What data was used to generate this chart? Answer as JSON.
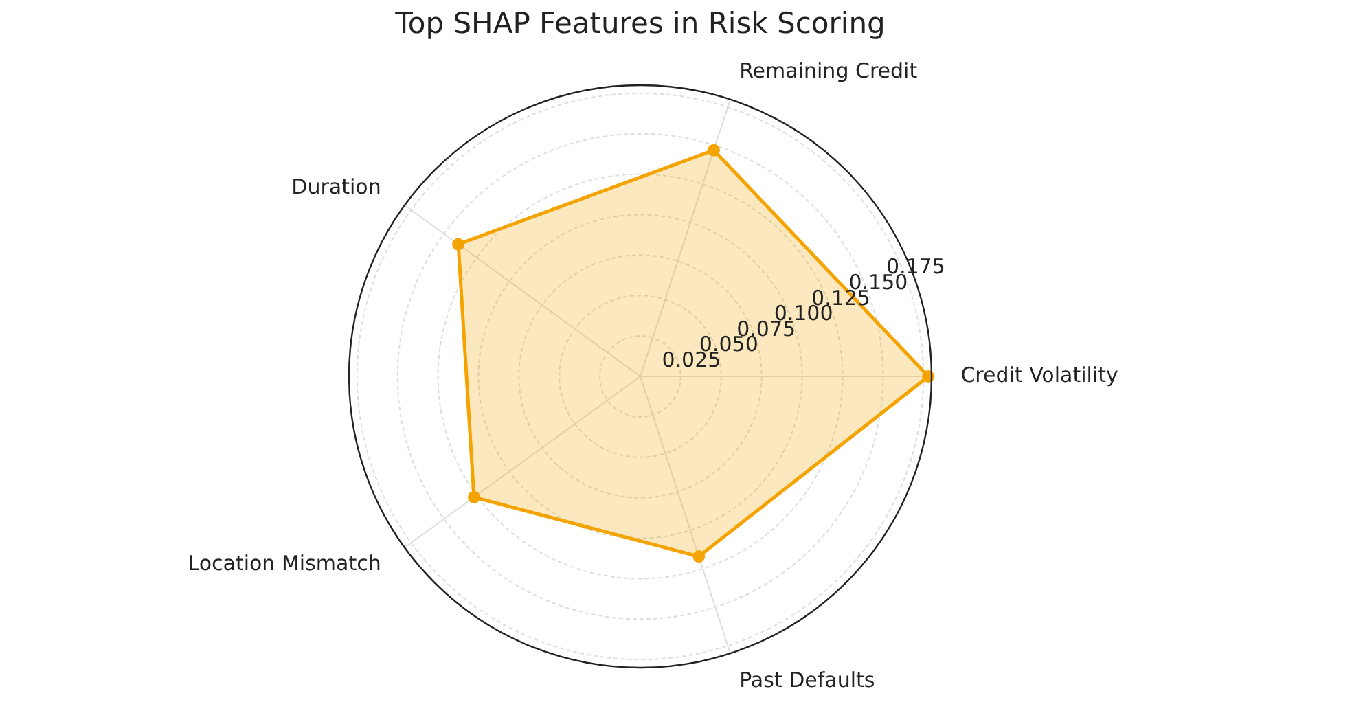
{
  "chart_data": {
    "type": "radar",
    "title": "Top SHAP Features in Risk Scoring",
    "categories": [
      "Remaining Credit",
      "Credit Volatility",
      "Past Defaults",
      "Location Mismatch",
      "Duration"
    ],
    "series": [
      {
        "color": "#f5a300",
        "values": [
          0.147,
          0.178,
          0.117,
          0.127,
          0.139
        ]
      }
    ],
    "ylim": [
      0,
      0.18
    ],
    "yticks": [
      0.025,
      {
        "value": 0.05,
        "label": "0.050"
      },
      0.075,
      {
        "value": 0.1,
        "label": "0.100"
      },
      0.125,
      {
        "value": 0.15,
        "label": "0.150"
      },
      0.175
    ],
    "grid": true,
    "marker": "circle"
  }
}
